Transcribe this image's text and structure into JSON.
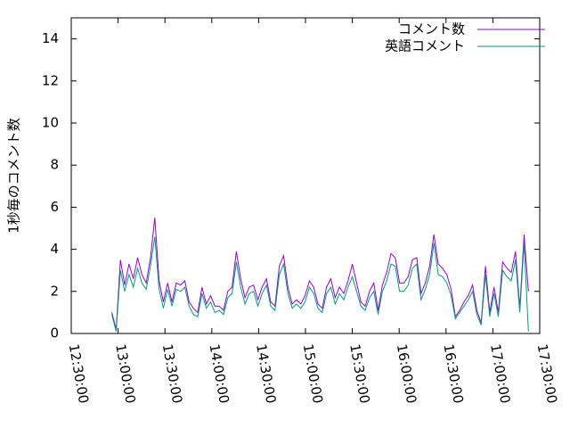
{
  "chart_data": {
    "type": "line",
    "y_label": "1秒毎のコメント数",
    "x": [
      "12:56:00",
      "12:58:45",
      "13:01:30",
      "13:04:15",
      "13:07:00",
      "13:09:45",
      "13:12:30",
      "13:15:15",
      "13:18:00",
      "13:20:45",
      "13:23:30",
      "13:26:15",
      "13:29:00",
      "13:31:45",
      "13:34:30",
      "13:37:15",
      "13:40:00",
      "13:42:45",
      "13:45:30",
      "13:48:15",
      "13:51:00",
      "13:53:45",
      "13:56:30",
      "13:59:15",
      "14:02:00",
      "14:04:45",
      "14:07:30",
      "14:10:15",
      "14:13:00",
      "14:15:45",
      "14:18:30",
      "14:21:15",
      "14:24:00",
      "14:26:45",
      "14:29:30",
      "14:32:15",
      "14:35:00",
      "14:37:45",
      "14:40:30",
      "14:43:15",
      "14:46:00",
      "14:48:45",
      "14:51:30",
      "14:54:15",
      "14:57:00",
      "14:59:45",
      "15:02:30",
      "15:05:15",
      "15:08:00",
      "15:10:45",
      "15:13:30",
      "15:16:15",
      "15:19:00",
      "15:21:45",
      "15:24:30",
      "15:27:15",
      "15:30:00",
      "15:32:45",
      "15:35:30",
      "15:38:15",
      "15:41:00",
      "15:43:45",
      "15:46:30",
      "15:49:15",
      "15:52:00",
      "15:54:45",
      "15:57:30",
      "16:00:15",
      "16:03:00",
      "16:05:45",
      "16:08:30",
      "16:11:15",
      "16:14:00",
      "16:16:45",
      "16:19:30",
      "16:22:15",
      "16:25:00",
      "16:27:45",
      "16:30:30",
      "16:33:15",
      "16:36:00",
      "16:38:45",
      "16:41:30",
      "16:44:15",
      "16:47:00",
      "16:49:45",
      "16:52:30",
      "16:55:15",
      "16:58:00",
      "17:00:45",
      "17:03:30",
      "17:06:15",
      "17:09:00",
      "17:11:45",
      "17:14:30",
      "17:17:15",
      "17:20:00",
      "17:22:45"
    ],
    "series": [
      {
        "name": "コメント数",
        "color": "#9400d3",
        "values": [
          1.0,
          0.2,
          3.5,
          2.3,
          3.3,
          2.6,
          3.6,
          2.8,
          2.4,
          3.6,
          5.5,
          2.5,
          1.5,
          2.4,
          1.5,
          2.4,
          2.3,
          2.5,
          1.5,
          1.2,
          1.0,
          2.2,
          1.4,
          1.8,
          1.3,
          1.3,
          1.1,
          2.0,
          2.2,
          3.9,
          2.6,
          1.7,
          2.2,
          2.3,
          1.6,
          2.2,
          2.6,
          1.5,
          1.3,
          3.2,
          3.7,
          2.2,
          1.4,
          1.6,
          1.4,
          1.8,
          2.5,
          2.2,
          1.4,
          1.2,
          2.2,
          2.6,
          1.7,
          2.2,
          1.9,
          2.5,
          3.3,
          2.4,
          1.5,
          1.3,
          2.0,
          2.4,
          1.1,
          2.3,
          2.9,
          3.8,
          3.6,
          2.4,
          2.4,
          2.7,
          3.5,
          3.6,
          1.9,
          2.4,
          3.2,
          4.7,
          3.3,
          3.1,
          2.8,
          2.1,
          0.8,
          1.1,
          1.5,
          1.8,
          2.3,
          1.1,
          0.5,
          3.2,
          1.0,
          2.2,
          1.0,
          3.4,
          3.1,
          2.9,
          3.9,
          1.2,
          4.7,
          2.0
        ]
      },
      {
        "name": "英語コメント",
        "color": "#009e73",
        "values": [
          0.9,
          0.1,
          3.0,
          2.0,
          2.8,
          2.2,
          3.1,
          2.4,
          2.1,
          3.2,
          4.6,
          2.1,
          1.2,
          2.1,
          1.3,
          2.1,
          2.0,
          2.2,
          1.3,
          0.9,
          0.8,
          1.9,
          1.2,
          1.5,
          1.0,
          1.1,
          0.9,
          1.7,
          1.9,
          3.4,
          2.2,
          1.4,
          1.9,
          2.0,
          1.3,
          1.9,
          2.3,
          1.3,
          1.1,
          2.8,
          3.3,
          1.9,
          1.2,
          1.4,
          1.2,
          1.5,
          2.2,
          1.9,
          1.2,
          1.0,
          1.9,
          2.2,
          1.4,
          1.9,
          1.6,
          2.2,
          2.7,
          2.0,
          1.3,
          1.1,
          1.7,
          2.0,
          0.9,
          2.0,
          2.5,
          3.3,
          3.2,
          2.0,
          2.0,
          2.3,
          3.1,
          3.3,
          1.6,
          2.1,
          2.8,
          4.3,
          2.8,
          2.7,
          2.4,
          1.8,
          0.7,
          1.0,
          1.3,
          1.6,
          2.0,
          0.9,
          0.4,
          2.8,
          0.8,
          1.9,
          0.8,
          3.0,
          2.7,
          2.5,
          3.5,
          1.0,
          4.3,
          0.1
        ]
      }
    ],
    "xlim": [
      "12:30:00",
      "17:30:00"
    ],
    "xticks": [
      "12:30:00",
      "13:00:00",
      "13:30:00",
      "14:00:00",
      "14:30:00",
      "15:00:00",
      "15:30:00",
      "16:00:00",
      "16:30:00",
      "17:00:00",
      "17:30:00"
    ],
    "ylim": [
      0,
      15
    ],
    "yticks": [
      0,
      2,
      4,
      6,
      8,
      10,
      12,
      14
    ],
    "legend": "top-right",
    "grid": false
  }
}
